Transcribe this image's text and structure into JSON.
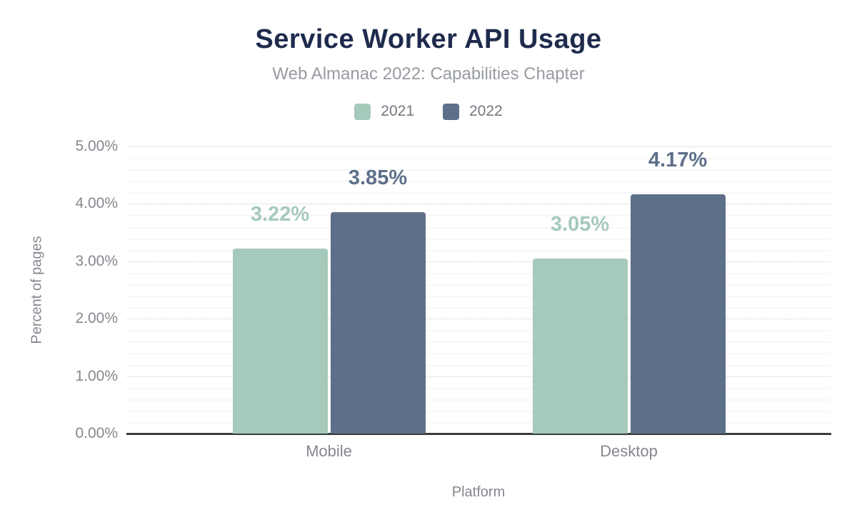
{
  "header": {
    "title": "Service Worker API Usage",
    "subtitle": "Web Almanac 2022: Capabilities Chapter"
  },
  "colors": {
    "title": "#1f2b4d",
    "subtitle": "#979ba2",
    "axis_text": "#84888e",
    "legend_text": "#73777e",
    "series_2021": "#a5c9ba",
    "series_2022": "#5e7089",
    "baseline": "#3a3b3d",
    "major_gridline": "#c7c9cd"
  },
  "chart_data": {
    "type": "bar",
    "title": "Service Worker API Usage",
    "subtitle": "Web Almanac 2022: Capabilities Chapter",
    "categories": [
      "Mobile",
      "Desktop"
    ],
    "series": [
      {
        "name": "2021",
        "color": "#a5c9ba",
        "values": [
          3.22,
          3.05
        ]
      },
      {
        "name": "2022",
        "color": "#5e7089",
        "values": [
          3.85,
          4.17
        ]
      }
    ],
    "data_labels": [
      [
        "3.22%",
        "3.05%"
      ],
      [
        "3.85%",
        "4.17%"
      ]
    ],
    "xlabel": "Platform",
    "ylabel": "Percent of pages",
    "ylim": [
      0,
      5
    ],
    "yticks": [
      "0.00%",
      "1.00%",
      "2.00%",
      "3.00%",
      "4.00%",
      "5.00%"
    ],
    "grid": {
      "major_interval": 1.0,
      "minor_interval": 0.2,
      "major_style": "dotted",
      "minor_style": "solid"
    },
    "legend_position": "top"
  }
}
